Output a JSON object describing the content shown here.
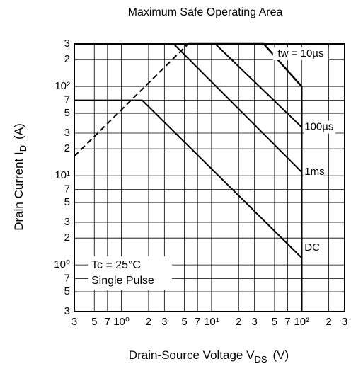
{
  "chart_data": {
    "type": "line",
    "title": "Maximum Safe Operating Area",
    "xlabel": [
      "Drain-Source Voltage  V",
      "DS",
      "(V)"
    ],
    "ylabel": [
      "Drain Current  I",
      "D",
      "(A)"
    ],
    "annotations": [
      "Tc = 25°C",
      "Single Pulse"
    ],
    "log_x": true,
    "log_y": true,
    "grid": true,
    "xlim": [
      0.3,
      300
    ],
    "ylim": [
      0.3,
      300
    ],
    "xticks": [
      {
        "value": 0.3,
        "label": "3"
      },
      {
        "value": 0.5,
        "label": "5"
      },
      {
        "value": 0.7,
        "label": "7"
      },
      {
        "value": 1,
        "label": "10⁰"
      },
      2,
      3,
      5,
      7,
      {
        "value": 10,
        "label": "10¹"
      },
      {
        "value": 20,
        "label": "2"
      },
      {
        "value": 30,
        "label": "3"
      },
      {
        "value": 50,
        "label": "5"
      },
      {
        "value": 70,
        "label": "7"
      },
      {
        "value": 100,
        "label": "10²"
      },
      {
        "value": 200,
        "label": "2"
      },
      {
        "value": 300,
        "label": "3"
      }
    ],
    "yticks": [
      {
        "value": 0.3,
        "label": "3"
      },
      {
        "value": 0.5,
        "label": "5"
      },
      {
        "value": 0.7,
        "label": "7"
      },
      {
        "value": 1,
        "label": "10⁰"
      },
      2,
      3,
      5,
      7,
      {
        "value": 10,
        "label": "10¹"
      },
      {
        "value": 20,
        "label": "2"
      },
      {
        "value": 30,
        "label": "3"
      },
      {
        "value": 50,
        "label": "5"
      },
      {
        "value": 70,
        "label": "7"
      },
      {
        "value": 100,
        "label": "10²"
      },
      {
        "value": 200,
        "label": "2"
      },
      {
        "value": 300,
        "label": "3"
      }
    ],
    "series": [
      {
        "color": "#000000",
        "dashed": true,
        "x": [
          0.3,
          5.5
        ],
        "values": [
          16.5,
          300
        ]
      },
      {
        "name": "tw = 10µs",
        "color": "#000000",
        "x": [
          5.5,
          38,
          100,
          100
        ],
        "values": [
          300,
          300,
          100,
          0.3
        ]
      },
      {
        "name": "100µs",
        "color": "#000000",
        "x": [
          11,
          100
        ],
        "values": [
          300,
          35
        ]
      },
      {
        "name": "1ms",
        "color": "#000000",
        "x": [
          3.8,
          100
        ],
        "values": [
          300,
          11
        ]
      },
      {
        "name": "DC",
        "color": "#000000",
        "x": [
          0.3,
          1.7,
          100
        ],
        "values": [
          70,
          70,
          1.2
        ]
      }
    ]
  }
}
